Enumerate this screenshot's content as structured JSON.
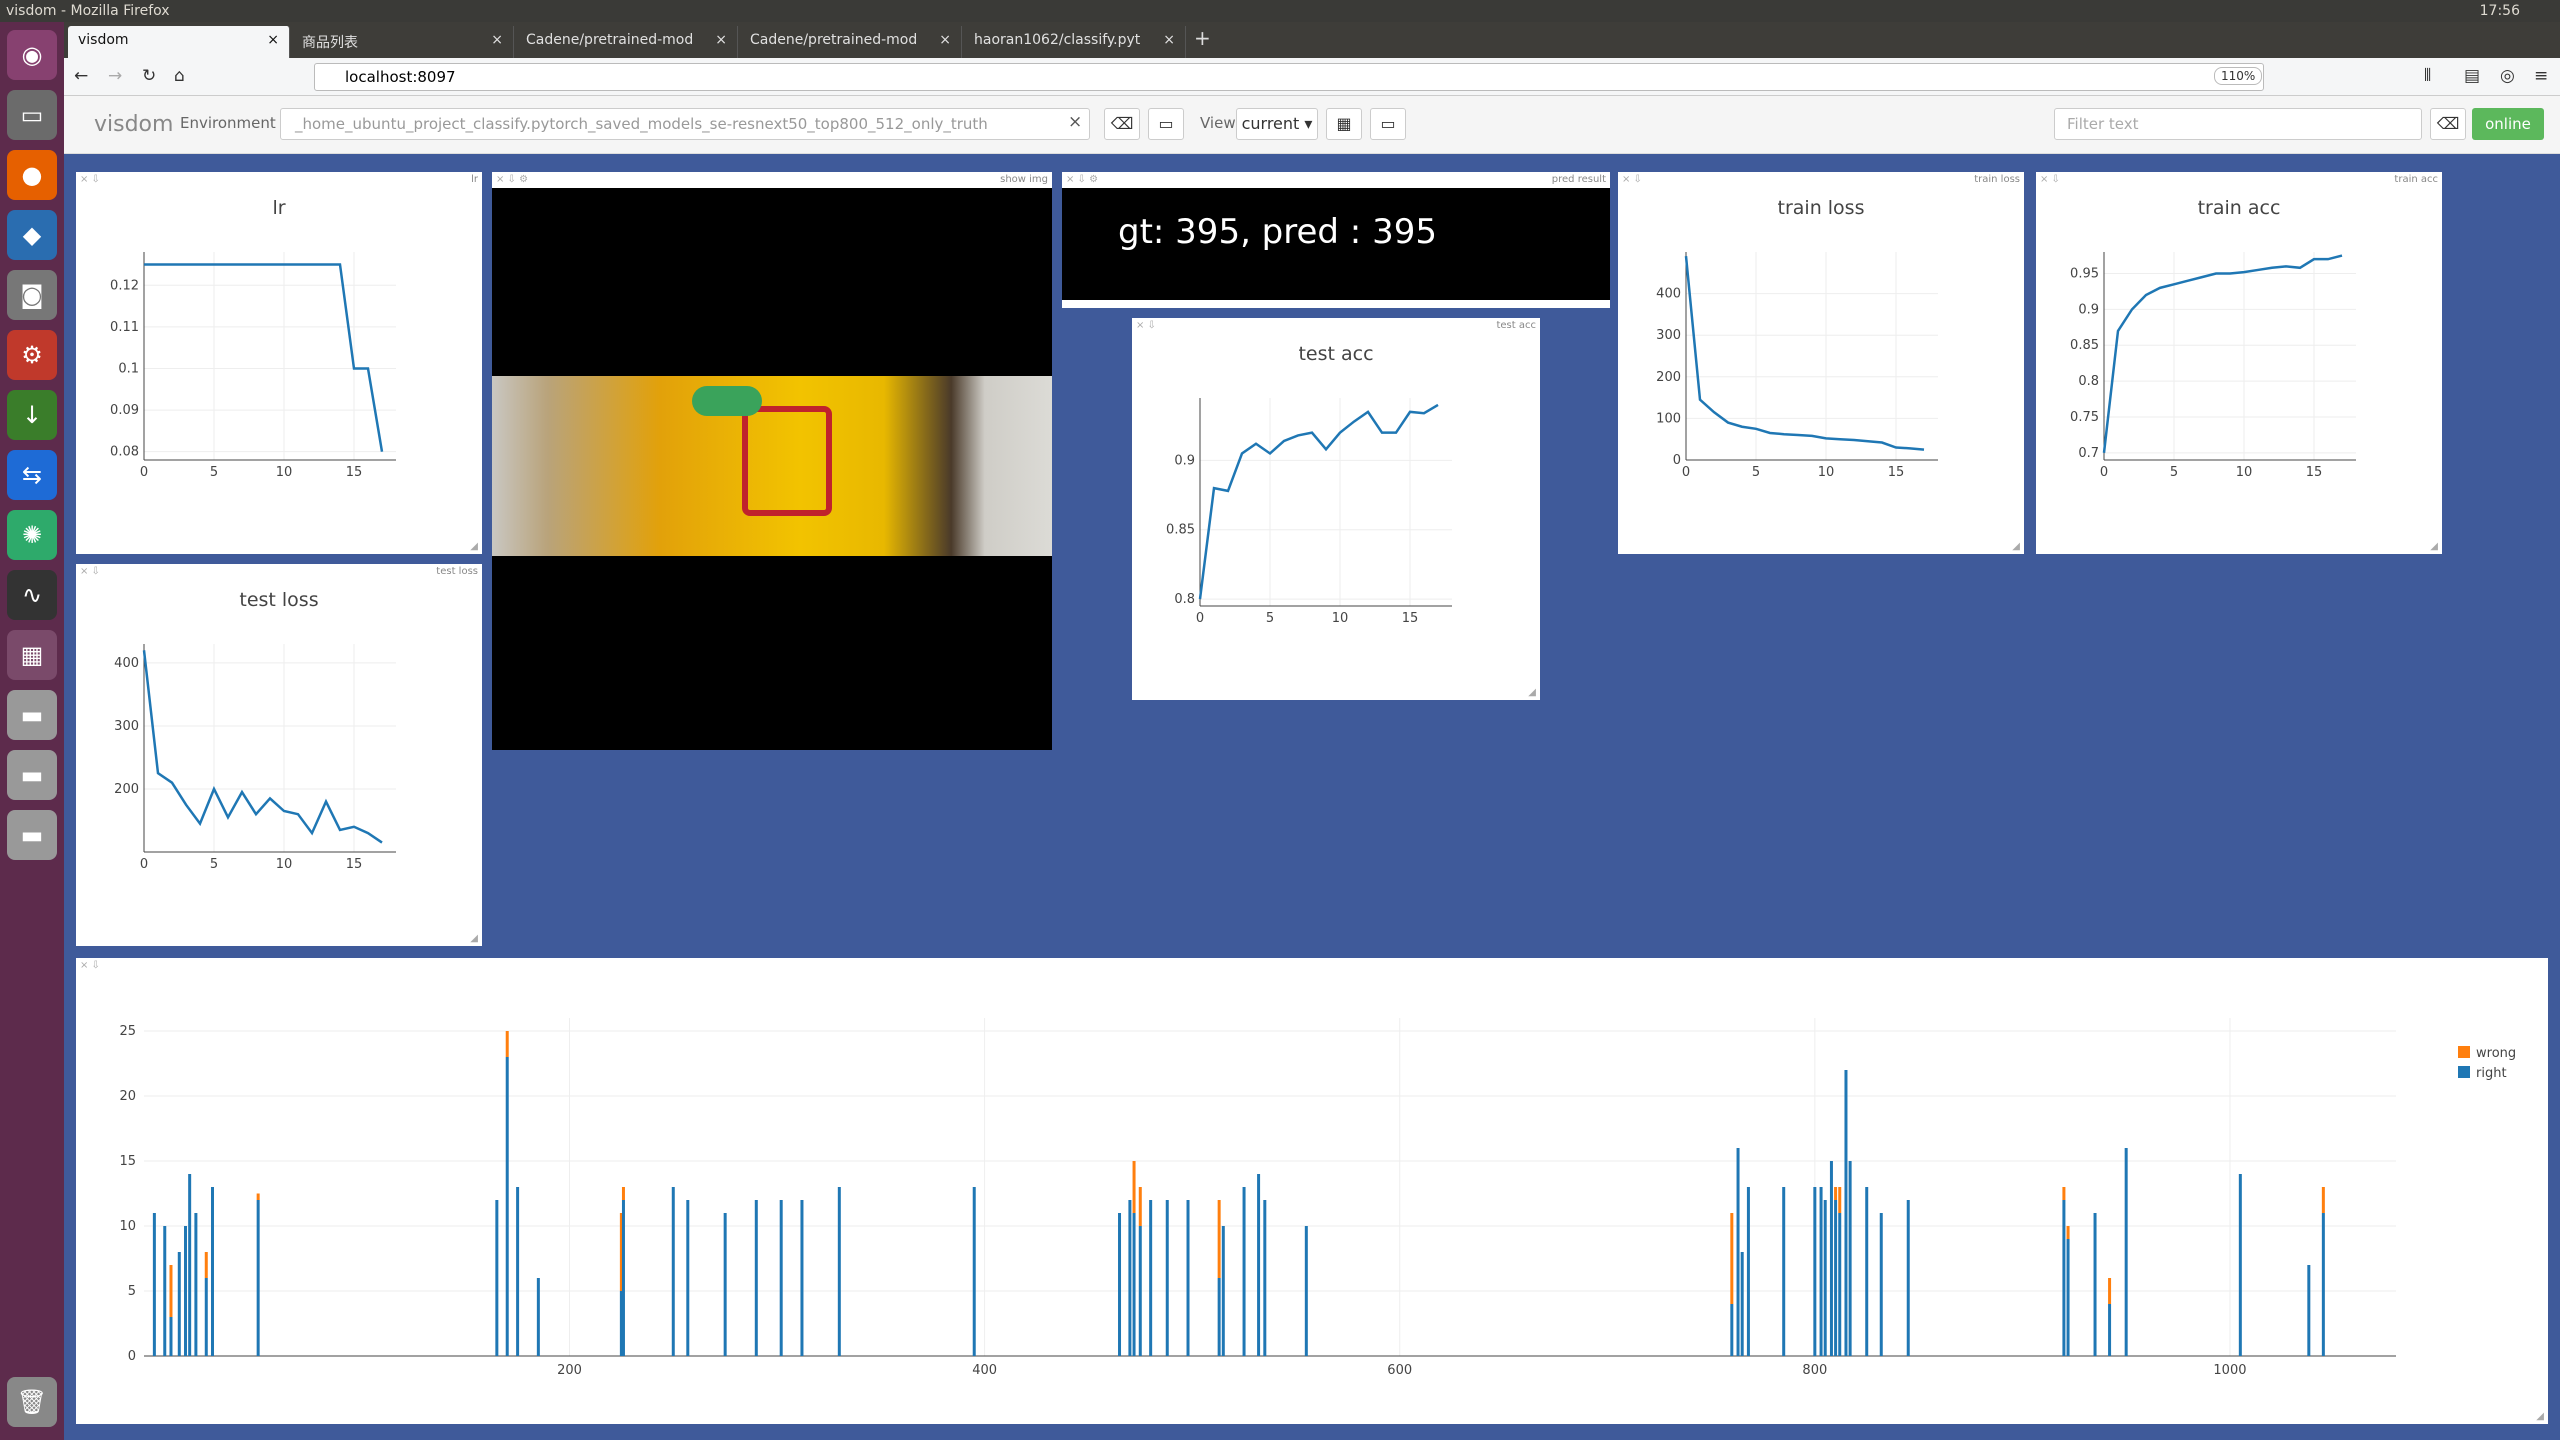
{
  "window_title": "visdom - Mozilla Firefox",
  "clock": "17:56",
  "tabs": [
    "visdom",
    "商品列表",
    "Cadene/pretrained-mod",
    "Cadene/pretrained-mod",
    "haoran1062/classify.pyt"
  ],
  "url": "localhost:8097",
  "zoom": "110%",
  "visdom": {
    "logo": "visdom",
    "env_label": "Environment",
    "env_value": "_home_ubuntu_project_classify.pytorch_saved_models_se-resnext50_top800_512_only_truth",
    "view_label": "View",
    "view_value": "current",
    "filter_placeholder": "Filter text",
    "status": "online"
  },
  "panes": {
    "lr_title": "lr",
    "show_img_title": "show img",
    "pred_result_title": "pred result",
    "pred_text": "gt: 395, pred : 395",
    "test_acc_title": "test acc",
    "train_loss_title": "train loss",
    "train_acc_title": "train acc",
    "test_loss_title": "test loss"
  },
  "chart_data": [
    {
      "type": "line",
      "title": "lr",
      "x": [
        0,
        1,
        2,
        3,
        4,
        5,
        6,
        7,
        8,
        9,
        10,
        11,
        12,
        13,
        14,
        15,
        16,
        17
      ],
      "y": [
        0.125,
        0.125,
        0.125,
        0.125,
        0.125,
        0.125,
        0.125,
        0.125,
        0.125,
        0.125,
        0.125,
        0.125,
        0.125,
        0.125,
        0.125,
        0.1,
        0.1,
        0.08
      ],
      "xticks": [
        0,
        5,
        10,
        15
      ],
      "yticks": [
        0.08,
        0.09,
        0.1,
        0.11,
        0.12
      ],
      "xlim": [
        0,
        18
      ],
      "ylim": [
        0.078,
        0.128
      ]
    },
    {
      "type": "line",
      "title": "test acc",
      "x": [
        0,
        1,
        2,
        3,
        4,
        5,
        6,
        7,
        8,
        9,
        10,
        11,
        12,
        13,
        14,
        15,
        16,
        17
      ],
      "y": [
        0.8,
        0.88,
        0.878,
        0.905,
        0.912,
        0.905,
        0.914,
        0.918,
        0.92,
        0.908,
        0.92,
        0.928,
        0.935,
        0.92,
        0.92,
        0.935,
        0.934,
        0.94
      ],
      "xticks": [
        0,
        5,
        10,
        15
      ],
      "yticks": [
        0.8,
        0.85,
        0.9
      ],
      "xlim": [
        0,
        18
      ],
      "ylim": [
        0.795,
        0.945
      ]
    },
    {
      "type": "line",
      "title": "train loss",
      "x": [
        0,
        1,
        2,
        3,
        4,
        5,
        6,
        7,
        8,
        9,
        10,
        11,
        12,
        13,
        14,
        15,
        16,
        17
      ],
      "y": [
        490,
        145,
        115,
        90,
        80,
        75,
        65,
        62,
        60,
        58,
        52,
        50,
        48,
        45,
        42,
        30,
        28,
        25
      ],
      "xticks": [
        0,
        5,
        10,
        15
      ],
      "yticks": [
        0,
        100,
        200,
        300,
        400
      ],
      "xlim": [
        0,
        18
      ],
      "ylim": [
        0,
        500
      ]
    },
    {
      "type": "line",
      "title": "train acc",
      "x": [
        0,
        1,
        2,
        3,
        4,
        5,
        6,
        7,
        8,
        9,
        10,
        11,
        12,
        13,
        14,
        15,
        16,
        17
      ],
      "y": [
        0.7,
        0.87,
        0.9,
        0.92,
        0.93,
        0.935,
        0.94,
        0.945,
        0.95,
        0.95,
        0.952,
        0.955,
        0.958,
        0.96,
        0.958,
        0.97,
        0.97,
        0.975
      ],
      "xticks": [
        0,
        5,
        10,
        15
      ],
      "yticks": [
        0.7,
        0.75,
        0.8,
        0.85,
        0.9,
        0.95
      ],
      "xlim": [
        0,
        18
      ],
      "ylim": [
        0.69,
        0.98
      ]
    },
    {
      "type": "line",
      "title": "test loss",
      "x": [
        0,
        1,
        2,
        3,
        4,
        5,
        6,
        7,
        8,
        9,
        10,
        11,
        12,
        13,
        14,
        15,
        16,
        17
      ],
      "y": [
        420,
        225,
        210,
        175,
        145,
        200,
        155,
        195,
        160,
        185,
        165,
        160,
        130,
        180,
        135,
        140,
        130,
        115
      ],
      "xticks": [
        0,
        5,
        10,
        15
      ],
      "yticks": [
        200,
        300,
        400
      ],
      "xlim": [
        0,
        18
      ],
      "ylim": [
        100,
        430
      ]
    },
    {
      "type": "bar",
      "stacked": true,
      "legend": [
        "wrong",
        "right"
      ],
      "colors": [
        "#ff7f0e",
        "#1f77b4"
      ],
      "xticks": [
        200,
        400,
        600,
        800,
        1000
      ],
      "yticks": [
        0,
        5,
        10,
        15,
        20,
        25
      ],
      "xlim": [
        -5,
        1080
      ],
      "ylim": [
        0,
        26
      ],
      "bars": [
        [
          0,
          11,
          0
        ],
        [
          5,
          10,
          0
        ],
        [
          8,
          3,
          4
        ],
        [
          12,
          8,
          0
        ],
        [
          15,
          10,
          0
        ],
        [
          17,
          14,
          0
        ],
        [
          20,
          11,
          0
        ],
        [
          25,
          6,
          2
        ],
        [
          28,
          13,
          0
        ],
        [
          50,
          12,
          0.5
        ],
        [
          165,
          12,
          0
        ],
        [
          170,
          23,
          2
        ],
        [
          175,
          13,
          0
        ],
        [
          185,
          6,
          0
        ],
        [
          225,
          5,
          6
        ],
        [
          226,
          12,
          1
        ],
        [
          250,
          13,
          0
        ],
        [
          257,
          12,
          0
        ],
        [
          275,
          11,
          0
        ],
        [
          290,
          12,
          0
        ],
        [
          302,
          12,
          0
        ],
        [
          312,
          12,
          0
        ],
        [
          330,
          13,
          0
        ],
        [
          395,
          13,
          0
        ],
        [
          465,
          11,
          0
        ],
        [
          470,
          12,
          0
        ],
        [
          472,
          11,
          4
        ],
        [
          475,
          10,
          3
        ],
        [
          480,
          12,
          0
        ],
        [
          488,
          12,
          0
        ],
        [
          498,
          12,
          0
        ],
        [
          513,
          6,
          6
        ],
        [
          515,
          10,
          0
        ],
        [
          525,
          13,
          0
        ],
        [
          532,
          14,
          0
        ],
        [
          535,
          12,
          0
        ],
        [
          555,
          10,
          0
        ],
        [
          760,
          4,
          7
        ],
        [
          763,
          16,
          0
        ],
        [
          765,
          8,
          0
        ],
        [
          768,
          13,
          0
        ],
        [
          785,
          13,
          0
        ],
        [
          800,
          13,
          0
        ],
        [
          803,
          13,
          0
        ],
        [
          805,
          12,
          0
        ],
        [
          808,
          15,
          0
        ],
        [
          810,
          12,
          1
        ],
        [
          812,
          11,
          2
        ],
        [
          815,
          22,
          0
        ],
        [
          817,
          15,
          0
        ],
        [
          825,
          13,
          0
        ],
        [
          832,
          11,
          0
        ],
        [
          845,
          12,
          0
        ],
        [
          920,
          12,
          1
        ],
        [
          922,
          9,
          1
        ],
        [
          935,
          11,
          0
        ],
        [
          942,
          4,
          2
        ],
        [
          950,
          16,
          0
        ],
        [
          1005,
          14,
          0
        ],
        [
          1038,
          7,
          0
        ],
        [
          1045,
          11,
          2
        ]
      ]
    }
  ]
}
